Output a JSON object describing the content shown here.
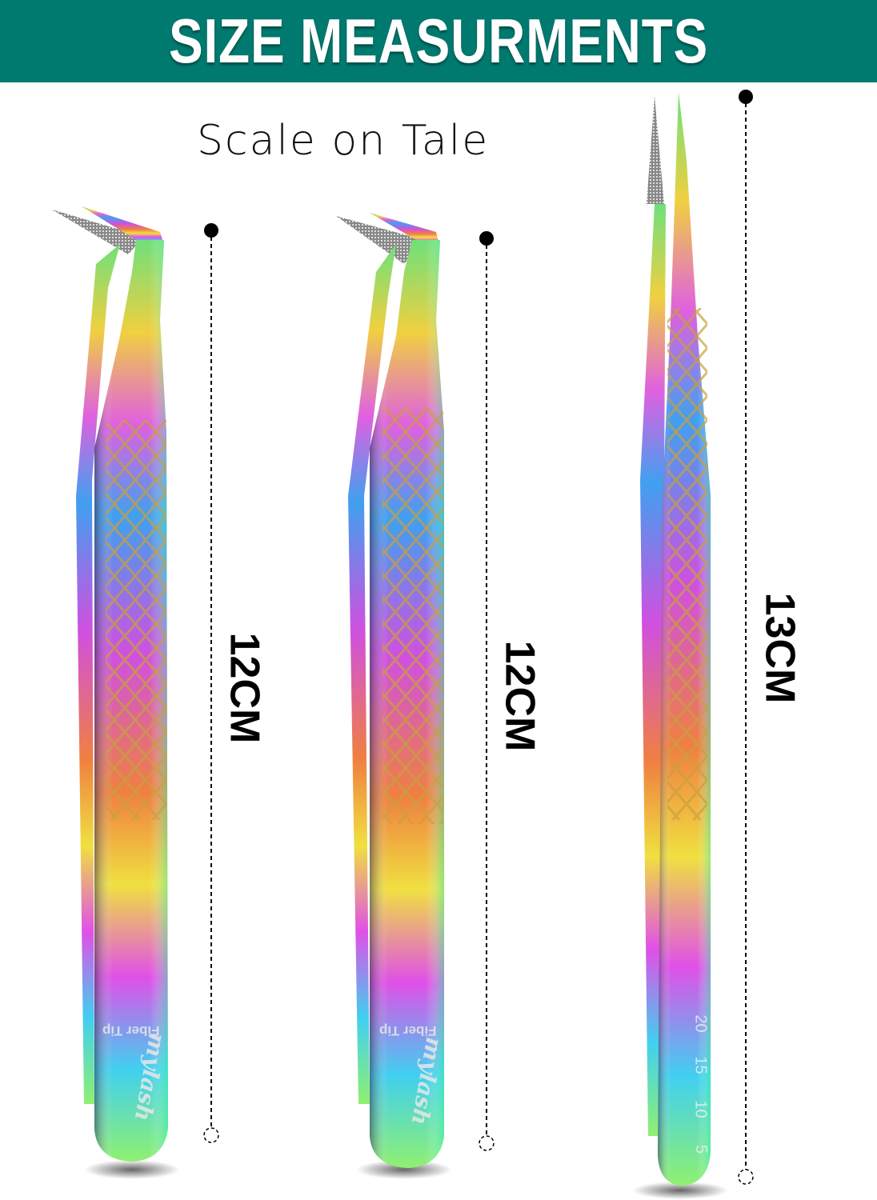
{
  "header": {
    "title": "SIZE MEASURMENTS",
    "background": "#00796f"
  },
  "subtitle": "Scale on Tale",
  "tweezers": [
    {
      "type": "angled",
      "size_label": "12CM",
      "engraving": "Fiber Tip",
      "logo": "mylash"
    },
    {
      "type": "angled",
      "size_label": "12CM",
      "engraving": "Fiber Tip",
      "logo": "mylash"
    },
    {
      "type": "straight",
      "size_label": "13CM",
      "scale_marks": [
        "20",
        "15",
        "10",
        "5"
      ]
    }
  ]
}
